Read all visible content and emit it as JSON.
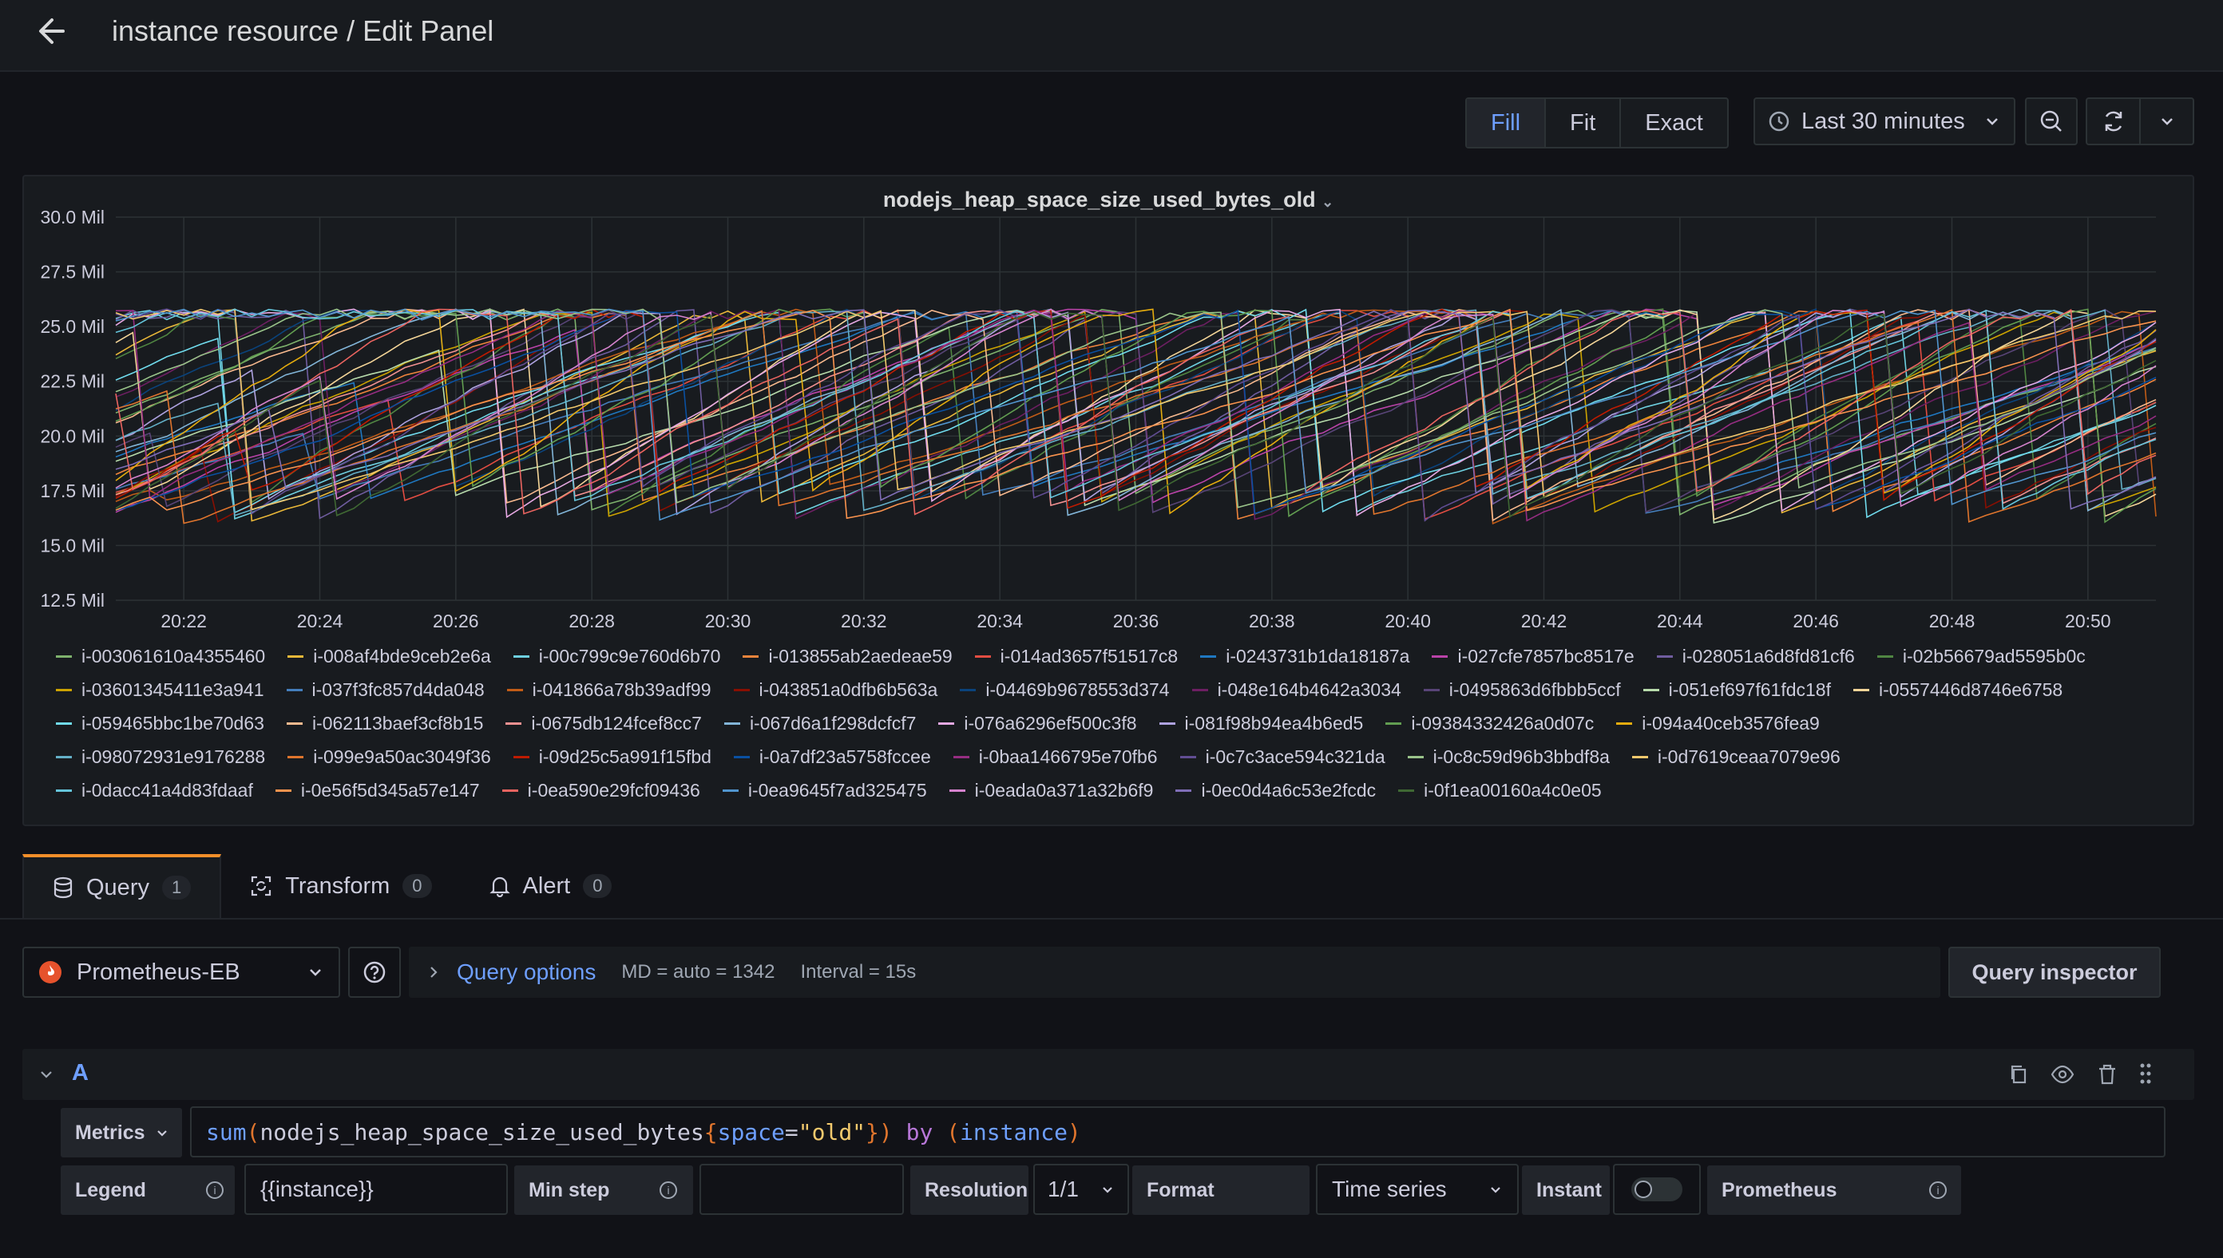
{
  "header": {
    "title": "instance resource / Edit Panel"
  },
  "toolbar": {
    "view_modes": [
      "Fill",
      "Fit",
      "Exact"
    ],
    "active_mode": "Fill",
    "time_range": "Last 30 minutes"
  },
  "panel": {
    "title": "nodejs_heap_space_size_used_bytes_old"
  },
  "chart_data": {
    "type": "line",
    "title": "nodejs_heap_space_size_used_bytes_old",
    "y_tick_labels": [
      "30.0 Mil",
      "27.5 Mil",
      "25.0 Mil",
      "22.5 Mil",
      "20.0 Mil",
      "17.5 Mil",
      "15.0 Mil",
      "12.5 Mil"
    ],
    "y_ticks": [
      30.0,
      27.5,
      25.0,
      22.5,
      20.0,
      17.5,
      15.0,
      12.5
    ],
    "ylim": [
      12.5,
      30.0
    ],
    "y_unit": "Mil",
    "x_tick_labels": [
      "20:22",
      "20:24",
      "20:26",
      "20:28",
      "20:30",
      "20:32",
      "20:34",
      "20:36",
      "20:38",
      "20:40",
      "20:42",
      "20:44",
      "20:46",
      "20:48",
      "20:50"
    ],
    "x_range": [
      "20:21",
      "20:51"
    ],
    "grid": true,
    "legend_placement": "bottom",
    "series_value_range": [
      16.0,
      25.8
    ],
    "series": [
      {
        "name": "i-003061610a4355460",
        "color": "#7eb26d"
      },
      {
        "name": "i-008af4bde9ceb2e6a",
        "color": "#eab839"
      },
      {
        "name": "i-00c799c9e760d6b70",
        "color": "#6ed0e0"
      },
      {
        "name": "i-013855ab2aedeae59",
        "color": "#ef843c"
      },
      {
        "name": "i-014ad3657f51517c8",
        "color": "#e24d42"
      },
      {
        "name": "i-0243731b1da18187a",
        "color": "#1f78c1"
      },
      {
        "name": "i-027cfe7857bc8517e",
        "color": "#ba43a9"
      },
      {
        "name": "i-028051a6d8fd81cf6",
        "color": "#705da0"
      },
      {
        "name": "i-02b56679ad5595b0c",
        "color": "#508642"
      },
      {
        "name": "i-03601345411e3a941",
        "color": "#cca300"
      },
      {
        "name": "i-037f3fc857d4da048",
        "color": "#447ebc"
      },
      {
        "name": "i-041866a78b39adf99",
        "color": "#c15c17"
      },
      {
        "name": "i-043851a0dfb6b563a",
        "color": "#890f02"
      },
      {
        "name": "i-04469b9678553d374",
        "color": "#0a437c"
      },
      {
        "name": "i-048e164b4642a3034",
        "color": "#6d1f62"
      },
      {
        "name": "i-0495863d6fbbb5ccf",
        "color": "#584477"
      },
      {
        "name": "i-051ef697f61fdc18f",
        "color": "#b7dbab"
      },
      {
        "name": "i-0557446d8746e6758",
        "color": "#f4d598"
      },
      {
        "name": "i-059465bbc1be70d63",
        "color": "#70dbed"
      },
      {
        "name": "i-062113baef3cf8b15",
        "color": "#f9ba8f"
      },
      {
        "name": "i-0675db124fcef8cc7",
        "color": "#f29191"
      },
      {
        "name": "i-067d6a1f298dcfcf7",
        "color": "#82b5d8"
      },
      {
        "name": "i-076a6296ef500c3f8",
        "color": "#e5a8e2"
      },
      {
        "name": "i-081f98b94ea4b6ed5",
        "color": "#aea2e0"
      },
      {
        "name": "i-09384332426a0d07c",
        "color": "#629e51"
      },
      {
        "name": "i-094a40ceb3576fea9",
        "color": "#e5ac0e"
      },
      {
        "name": "i-098072931e9176288",
        "color": "#64b0c8"
      },
      {
        "name": "i-099e9a50ac3049f36",
        "color": "#e0752d"
      },
      {
        "name": "i-09d25c5a991f15fbd",
        "color": "#bf1b00"
      },
      {
        "name": "i-0a7df23a5758fccee",
        "color": "#0a50a1"
      },
      {
        "name": "i-0baa1466795e70fb6",
        "color": "#962d82"
      },
      {
        "name": "i-0c7c3ace594c321da",
        "color": "#614d93"
      },
      {
        "name": "i-0c8c59d96b3bbdf8a",
        "color": "#9ac48a"
      },
      {
        "name": "i-0d7619ceaa7079e96",
        "color": "#f2c96d"
      },
      {
        "name": "i-0dacc41a4d83fdaaf",
        "color": "#65c5db"
      },
      {
        "name": "i-0e56f5d345a57e147",
        "color": "#f9934e"
      },
      {
        "name": "i-0ea590e29fcf09436",
        "color": "#ea6460"
      },
      {
        "name": "i-0ea9645f7ad325475",
        "color": "#5195ce"
      },
      {
        "name": "i-0eada0a371a32b6f9",
        "color": "#d683ce"
      },
      {
        "name": "i-0ec0d4a6c53e2fcdc",
        "color": "#806eb7"
      },
      {
        "name": "i-0f1ea00160a4c0e05",
        "color": "#3f6833"
      }
    ]
  },
  "tabs": [
    {
      "label": "Query",
      "count": "1"
    },
    {
      "label": "Transform",
      "count": "0"
    },
    {
      "label": "Alert",
      "count": "0"
    }
  ],
  "datasource": {
    "name": "Prometheus-EB"
  },
  "query_options": {
    "label": "Query options",
    "md": "MD = auto = 1342",
    "interval": "Interval = 15s"
  },
  "query_inspector": {
    "label": "Query inspector"
  },
  "query": {
    "ref_id": "A",
    "metrics_label": "Metrics",
    "expr_tokens": [
      {
        "t": "sum",
        "c": "#6e9fff"
      },
      {
        "t": "(",
        "c": "#e0752d"
      },
      {
        "t": "nodejs_heap_space_size_used_bytes",
        "c": "#ccccdc"
      },
      {
        "t": "{",
        "c": "#e0752d"
      },
      {
        "t": "space",
        "c": "#6e9fff"
      },
      {
        "t": "=",
        "c": "#ccccdc"
      },
      {
        "t": "\"old\"",
        "c": "#f2c96d"
      },
      {
        "t": "}",
        "c": "#e0752d"
      },
      {
        "t": ")",
        "c": "#e0752d"
      },
      {
        "t": " by ",
        "c": "#b877d9"
      },
      {
        "t": "(",
        "c": "#e0752d"
      },
      {
        "t": "instance",
        "c": "#6e9fff"
      },
      {
        "t": ")",
        "c": "#e0752d"
      }
    ],
    "legend_label": "Legend",
    "legend_value": "{{instance}}",
    "min_step_label": "Min step",
    "min_step_value": "",
    "resolution_label": "Resolution",
    "resolution_value": "1/1",
    "format_label": "Format",
    "format_value": "Time series",
    "instant_label": "Instant",
    "instant_on": false,
    "prometheus_label": "Prometheus"
  }
}
